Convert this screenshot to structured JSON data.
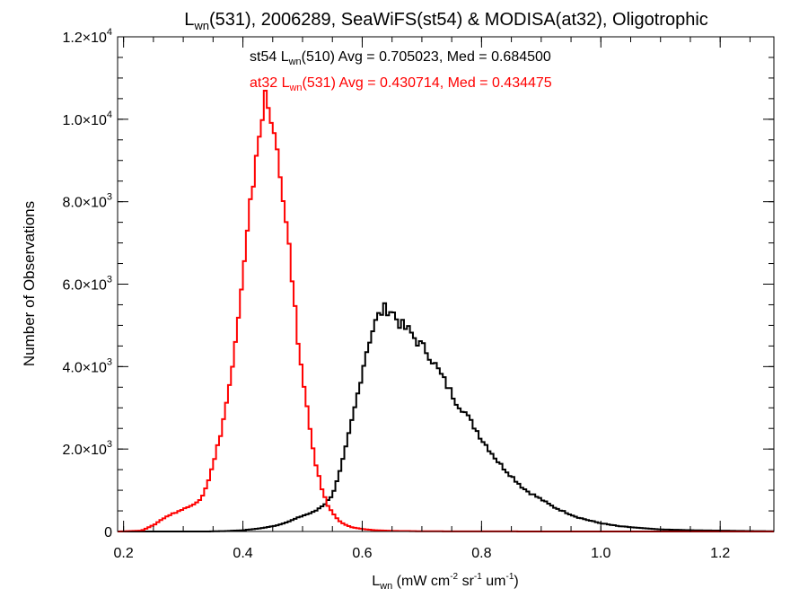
{
  "chart_data": {
    "type": "line",
    "style": "histogram-step",
    "title": {
      "base": "L",
      "sub": "wn",
      "rest": "(531), 2006289, SeaWiFS(st54) & MODISA(at32), Oligotrophic"
    },
    "xlabel": {
      "base": "L",
      "sub": "wn",
      "pre": " (mW cm",
      "sup1": "-2",
      "mid1": " sr",
      "sup2": "-1",
      "mid2": " um",
      "sup3": "-1",
      "post": ")"
    },
    "ylabel": "Number of Observations",
    "xlim": [
      0.19,
      1.29
    ],
    "ylim": [
      0,
      12000
    ],
    "grid": false,
    "x_ticks": [
      {
        "value": 0.2,
        "label": "0.2"
      },
      {
        "value": 0.4,
        "label": "0.4"
      },
      {
        "value": 0.6,
        "label": "0.6"
      },
      {
        "value": 0.8,
        "label": "0.8"
      },
      {
        "value": 1.0,
        "label": "1.0"
      },
      {
        "value": 1.2,
        "label": "1.2"
      }
    ],
    "y_ticks": [
      {
        "value": 0,
        "mant": "0",
        "exp": ""
      },
      {
        "value": 2000,
        "mant": "2.0×10",
        "exp": "3"
      },
      {
        "value": 4000,
        "mant": "4.0×10",
        "exp": "3"
      },
      {
        "value": 6000,
        "mant": "6.0×10",
        "exp": "3"
      },
      {
        "value": 8000,
        "mant": "8.0×10",
        "exp": "3"
      },
      {
        "value": 10000,
        "mant": "1.0×10",
        "exp": "4"
      },
      {
        "value": 12000,
        "mant": "1.2×10",
        "exp": "4"
      }
    ],
    "annotations": [
      {
        "color": "#000000",
        "pre": "st54 L",
        "sub": "wn",
        "post": "(510) Avg = 0.705023, Med = 0.684500"
      },
      {
        "color": "#ff0000",
        "pre": "at32 L",
        "sub": "wn",
        "post": "(531) Avg = 0.430714, Med = 0.434475"
      }
    ],
    "series": [
      {
        "color": "#000000",
        "x": [
          0.19,
          0.22,
          0.25,
          0.28,
          0.31,
          0.34,
          0.37,
          0.4,
          0.42,
          0.44,
          0.46,
          0.48,
          0.5,
          0.52,
          0.54,
          0.55,
          0.56,
          0.57,
          0.58,
          0.59,
          0.6,
          0.61,
          0.62,
          0.63,
          0.64,
          0.65,
          0.66,
          0.67,
          0.68,
          0.69,
          0.7,
          0.71,
          0.72,
          0.73,
          0.74,
          0.75,
          0.76,
          0.77,
          0.78,
          0.79,
          0.8,
          0.81,
          0.82,
          0.83,
          0.84,
          0.85,
          0.86,
          0.87,
          0.88,
          0.9,
          0.92,
          0.94,
          0.96,
          0.98,
          1.0,
          1.03,
          1.06,
          1.1,
          1.15,
          1.2,
          1.25,
          1.29
        ],
        "y": [
          0,
          0,
          0,
          0,
          0,
          0,
          10,
          30,
          60,
          100,
          160,
          260,
          380,
          480,
          700,
          900,
          1300,
          1850,
          2500,
          3150,
          3900,
          4550,
          5000,
          5300,
          5420,
          5350,
          5100,
          4950,
          4850,
          4650,
          4500,
          4350,
          4100,
          3850,
          3600,
          3350,
          3100,
          2950,
          2700,
          2500,
          2250,
          2050,
          1850,
          1650,
          1500,
          1350,
          1200,
          1050,
          950,
          780,
          600,
          470,
          350,
          270,
          200,
          130,
          90,
          50,
          30,
          20,
          10,
          5
        ]
      },
      {
        "color": "#ff0000",
        "x": [
          0.19,
          0.23,
          0.25,
          0.27,
          0.29,
          0.31,
          0.33,
          0.34,
          0.35,
          0.36,
          0.37,
          0.38,
          0.39,
          0.4,
          0.41,
          0.42,
          0.43,
          0.435,
          0.44,
          0.445,
          0.45,
          0.46,
          0.47,
          0.48,
          0.49,
          0.5,
          0.51,
          0.52,
          0.53,
          0.54,
          0.55,
          0.56,
          0.57,
          0.58,
          0.6,
          0.62,
          0.65,
          0.7,
          0.8,
          1.0,
          1.29
        ],
        "y": [
          0,
          20,
          150,
          350,
          480,
          600,
          800,
          1150,
          1600,
          2200,
          2900,
          3750,
          4800,
          6100,
          7500,
          8900,
          9900,
          10400,
          10500,
          10100,
          9800,
          9000,
          8000,
          6400,
          5000,
          3700,
          2700,
          1800,
          1150,
          700,
          450,
          280,
          180,
          110,
          60,
          30,
          15,
          5,
          2,
          0,
          0
        ]
      }
    ]
  }
}
